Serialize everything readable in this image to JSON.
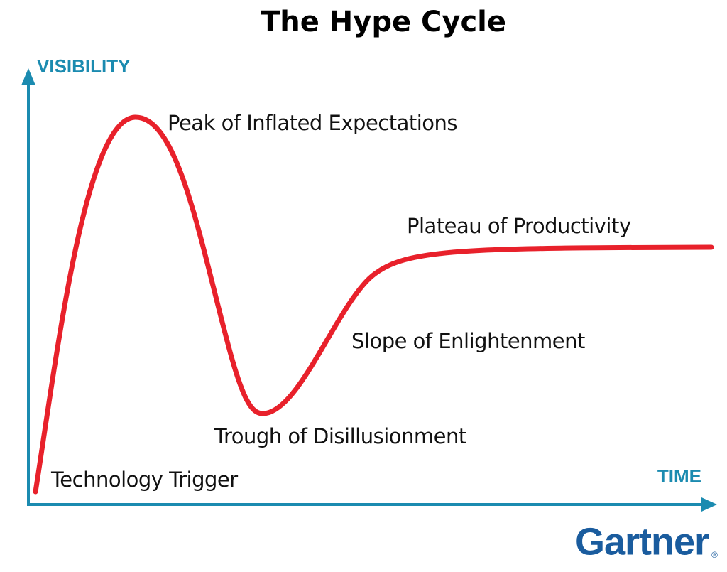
{
  "title": "The Hype Cycle",
  "axes": {
    "y_label": "VISIBILITY",
    "x_label": "TIME"
  },
  "phases": [
    "Technology Trigger",
    "Peak of Inflated Expectations",
    "Trough of Disillusionment",
    "Slope of Enlightenment",
    "Plateau of Productivity"
  ],
  "brand": {
    "name": "Gartner",
    "mark": "®"
  }
}
